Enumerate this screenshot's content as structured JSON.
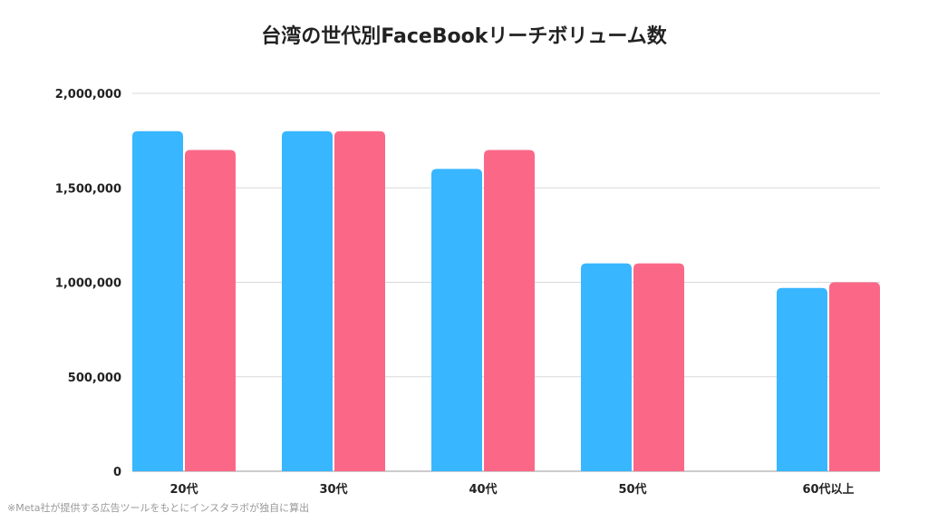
{
  "footnote": "※Meta社が提供する広告ツールをもとにインスタラボが独自に算出",
  "chart_data": {
    "type": "bar",
    "title": "台湾の世代別FaceBookリーチボリューム数",
    "xlabel": "",
    "ylabel": "",
    "categories": [
      "20代",
      "30代",
      "40代",
      "50代",
      "60代以上"
    ],
    "series": [
      {
        "values": [
          1800000,
          1800000,
          1600000,
          1100000,
          970000
        ]
      },
      {
        "values": [
          1700000,
          1800000,
          1700000,
          1100000,
          1000000
        ]
      }
    ],
    "ylim": [
      0,
      2000000
    ],
    "yticks": [
      0,
      500000,
      1000000,
      1500000,
      2000000
    ],
    "ytick_labels": [
      "0",
      "500,000",
      "1,000,000",
      "1,500,000",
      "2,000,000"
    ],
    "grid": true,
    "colors": [
      "#38b6ff",
      "#fb6887"
    ]
  }
}
